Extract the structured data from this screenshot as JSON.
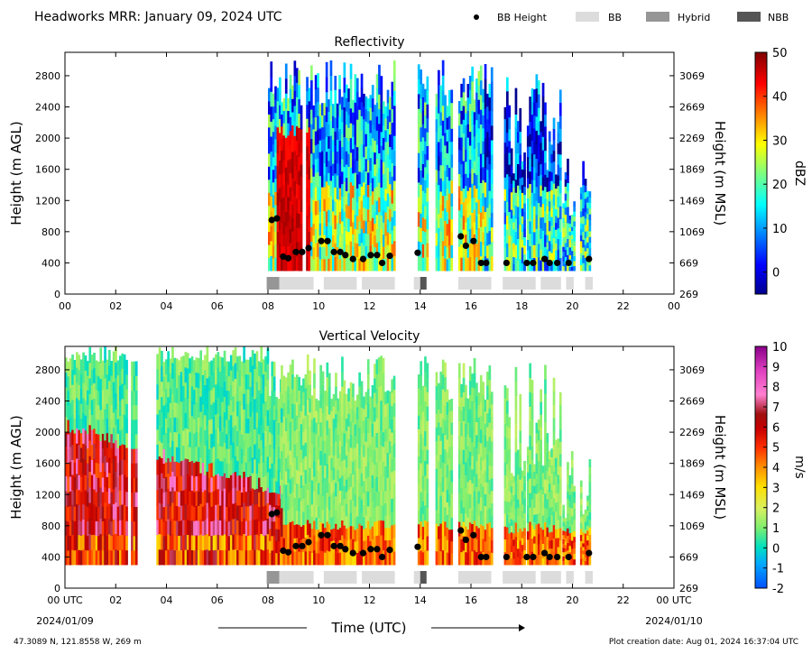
{
  "header": {
    "title": "Headworks MRR:  January 09, 2024 UTC",
    "legend": [
      {
        "label": "BB Height",
        "kind": "dot",
        "color": "#000000"
      },
      {
        "label": "BB",
        "kind": "box",
        "color": "#dcdcdc"
      },
      {
        "label": "Hybrid",
        "kind": "box",
        "color": "#969696"
      },
      {
        "label": "NBB",
        "kind": "box",
        "color": "#555555"
      }
    ]
  },
  "footer": {
    "location": "47.3089 N, 121.8558 W, 269 m",
    "created": "Plot creation date: Aug 01, 2024 16:37:04 UTC",
    "xlabel": "Time (UTC)",
    "date_start": "2024/01/09",
    "date_end": "2024/01/10"
  },
  "chart_data": [
    {
      "type": "heatmap",
      "title": "Reflectivity",
      "ylabel": "Height (m AGL)",
      "ylabel_right": "Height (m MSL)",
      "xlabel": "",
      "xlim": [
        0,
        24
      ],
      "ylim": [
        0,
        3100
      ],
      "x_ticks": [
        "00",
        "02",
        "04",
        "06",
        "08",
        "10",
        "12",
        "14",
        "16",
        "18",
        "20",
        "22",
        "00"
      ],
      "y_ticks": [
        0,
        400,
        800,
        1200,
        1600,
        2000,
        2400,
        2800
      ],
      "y_ticks_right": [
        269,
        669,
        1069,
        1469,
        1869,
        2269,
        2669,
        3069
      ],
      "colorbar": {
        "label": "dBZ",
        "min": -5,
        "max": 50,
        "ticks": [
          0,
          10,
          20,
          30,
          40,
          50
        ],
        "colormap": "jet"
      },
      "data_present_hours": [
        [
          8.0,
          8.5
        ],
        [
          8.5,
          9.3
        ],
        [
          9.5,
          10.8
        ],
        [
          10.8,
          12.0
        ],
        [
          12.0,
          13.0
        ],
        [
          13.9,
          14.3
        ],
        [
          14.6,
          15.2
        ],
        [
          15.5,
          16.8
        ],
        [
          17.3,
          18.1
        ],
        [
          18.2,
          19.5
        ],
        [
          19.6,
          20.1
        ],
        [
          20.3,
          20.7
        ]
      ],
      "bb_height": [
        {
          "x": 8.15,
          "y": 950
        },
        {
          "x": 8.35,
          "y": 970
        },
        {
          "x": 8.6,
          "y": 480
        },
        {
          "x": 8.8,
          "y": 460
        },
        {
          "x": 9.1,
          "y": 540
        },
        {
          "x": 9.35,
          "y": 540
        },
        {
          "x": 9.6,
          "y": 590
        },
        {
          "x": 10.1,
          "y": 680
        },
        {
          "x": 10.35,
          "y": 680
        },
        {
          "x": 10.6,
          "y": 540
        },
        {
          "x": 10.85,
          "y": 540
        },
        {
          "x": 11.05,
          "y": 500
        },
        {
          "x": 11.35,
          "y": 450
        },
        {
          "x": 11.75,
          "y": 450
        },
        {
          "x": 12.05,
          "y": 500
        },
        {
          "x": 12.3,
          "y": 500
        },
        {
          "x": 12.5,
          "y": 400
        },
        {
          "x": 12.8,
          "y": 490
        },
        {
          "x": 13.9,
          "y": 530
        },
        {
          "x": 15.6,
          "y": 740
        },
        {
          "x": 15.8,
          "y": 620
        },
        {
          "x": 16.1,
          "y": 680
        },
        {
          "x": 16.4,
          "y": 400
        },
        {
          "x": 16.6,
          "y": 400
        },
        {
          "x": 17.4,
          "y": 400
        },
        {
          "x": 18.2,
          "y": 400
        },
        {
          "x": 18.45,
          "y": 400
        },
        {
          "x": 18.9,
          "y": 450
        },
        {
          "x": 19.1,
          "y": 400
        },
        {
          "x": 19.4,
          "y": 400
        },
        {
          "x": 19.85,
          "y": 400
        },
        {
          "x": 20.65,
          "y": 450
        }
      ],
      "bb_category": [
        {
          "start": 7.95,
          "end": 8.45,
          "type": "Hybrid"
        },
        {
          "start": 8.45,
          "end": 9.8,
          "type": "BB"
        },
        {
          "start": 10.2,
          "end": 11.5,
          "type": "BB"
        },
        {
          "start": 11.7,
          "end": 13.0,
          "type": "BB"
        },
        {
          "start": 13.75,
          "end": 14.0,
          "type": "BB"
        },
        {
          "start": 14.0,
          "end": 14.25,
          "type": "NBB"
        },
        {
          "start": 15.5,
          "end": 16.8,
          "type": "BB"
        },
        {
          "start": 17.25,
          "end": 18.55,
          "type": "BB"
        },
        {
          "start": 18.75,
          "end": 19.55,
          "type": "BB"
        },
        {
          "start": 19.75,
          "end": 20.05,
          "type": "BB"
        },
        {
          "start": 20.5,
          "end": 20.8,
          "type": "BB"
        }
      ]
    },
    {
      "type": "heatmap",
      "title": "Vertical Velocity",
      "ylabel": "Height (m AGL)",
      "ylabel_right": "Height (m MSL)",
      "xlabel": "Time (UTC)",
      "xlim": [
        0,
        24
      ],
      "ylim": [
        0,
        3100
      ],
      "x_ticks": [
        "00 UTC",
        "02",
        "04",
        "06",
        "08",
        "10",
        "12",
        "14",
        "16",
        "18",
        "20",
        "22",
        "00 UTC"
      ],
      "y_ticks": [
        0,
        400,
        800,
        1200,
        1600,
        2000,
        2400,
        2800
      ],
      "y_ticks_right": [
        269,
        669,
        1069,
        1469,
        1869,
        2269,
        2669,
        3069
      ],
      "colorbar": {
        "label": "m/s",
        "min": -2,
        "max": 10,
        "ticks": [
          -2,
          -1,
          0,
          1,
          2,
          3,
          4,
          5,
          6,
          7,
          8,
          9,
          10
        ],
        "colormap": "velocity"
      },
      "data_present_hours": [
        [
          0.0,
          2.4
        ],
        [
          2.6,
          2.8
        ],
        [
          3.6,
          8.5
        ],
        [
          8.5,
          10.8
        ],
        [
          10.8,
          13.0
        ],
        [
          13.9,
          14.3
        ],
        [
          14.6,
          15.2
        ],
        [
          15.5,
          16.8
        ],
        [
          17.3,
          18.1
        ],
        [
          18.2,
          19.5
        ],
        [
          19.6,
          20.1
        ],
        [
          20.3,
          20.7
        ]
      ],
      "bb_height": "same as Reflectivity",
      "bb_category": "same as Reflectivity"
    }
  ]
}
